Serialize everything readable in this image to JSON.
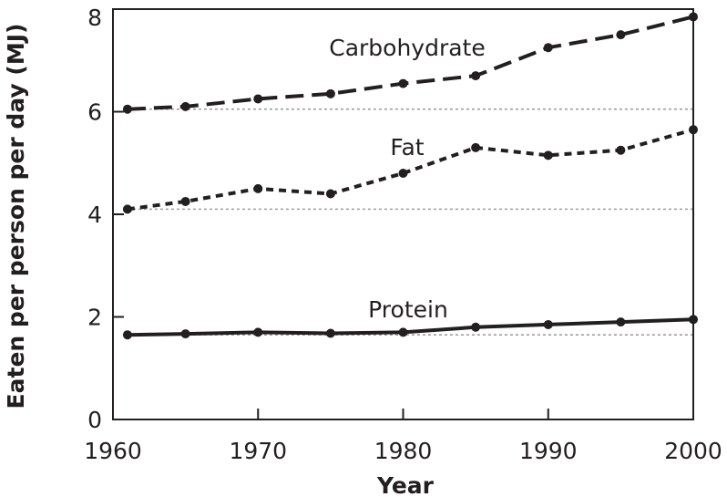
{
  "chart_data": {
    "type": "line",
    "title": "",
    "xlabel": "Year",
    "ylabel": "Eaten per person per day (MJ)",
    "xlim": [
      1960,
      2000
    ],
    "ylim": [
      0,
      8
    ],
    "xticks": [
      "1960",
      "1970",
      "1980",
      "1990",
      "2000"
    ],
    "yticks": [
      "0",
      "2",
      "4",
      "6",
      "8"
    ],
    "reference_lines": [
      6.05,
      4.1,
      1.65
    ],
    "series": [
      {
        "name": "Carbohydrate",
        "style": "long-dash",
        "x": [
          1961,
          1965,
          1970,
          1975,
          1980,
          1985,
          1990,
          1995,
          2000
        ],
        "values": [
          6.05,
          6.1,
          6.25,
          6.35,
          6.55,
          6.7,
          7.25,
          7.5,
          7.85
        ]
      },
      {
        "name": "Fat",
        "style": "short-dash",
        "x": [
          1961,
          1965,
          1970,
          1975,
          1980,
          1985,
          1990,
          1995,
          2000
        ],
        "values": [
          4.1,
          4.25,
          4.5,
          4.4,
          4.8,
          5.3,
          5.15,
          5.25,
          5.65
        ]
      },
      {
        "name": "Protein",
        "style": "solid",
        "x": [
          1961,
          1965,
          1970,
          1975,
          1980,
          1985,
          1990,
          1995,
          2000
        ],
        "values": [
          1.65,
          1.67,
          1.7,
          1.68,
          1.7,
          1.8,
          1.85,
          1.9,
          1.95
        ]
      }
    ],
    "colors": {
      "ink": "#231f20",
      "reference": "#9d9d9d"
    }
  }
}
